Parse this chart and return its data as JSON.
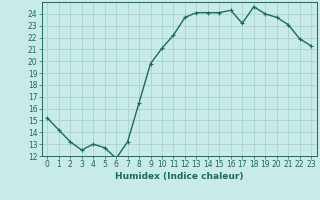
{
  "x": [
    0,
    1,
    2,
    3,
    4,
    5,
    6,
    7,
    8,
    9,
    10,
    11,
    12,
    13,
    14,
    15,
    16,
    17,
    18,
    19,
    20,
    21,
    22,
    23
  ],
  "y": [
    15.2,
    14.2,
    13.2,
    12.5,
    13.0,
    12.7,
    11.8,
    13.2,
    16.5,
    19.8,
    21.1,
    22.2,
    23.7,
    24.1,
    24.1,
    24.1,
    24.3,
    23.2,
    24.6,
    24.0,
    23.7,
    23.1,
    21.9,
    21.3
  ],
  "line_color": "#1a6b5a",
  "marker": "+",
  "marker_size": 3,
  "bg_color": "#c8ebe8",
  "grid_color": "#a8d4d0",
  "xlabel": "Humidex (Indice chaleur)",
  "xlim": [
    -0.5,
    23.5
  ],
  "ylim": [
    12,
    25
  ],
  "yticks": [
    12,
    13,
    14,
    15,
    16,
    17,
    18,
    19,
    20,
    21,
    22,
    23,
    24
  ],
  "xticks": [
    0,
    1,
    2,
    3,
    4,
    5,
    6,
    7,
    8,
    9,
    10,
    11,
    12,
    13,
    14,
    15,
    16,
    17,
    18,
    19,
    20,
    21,
    22,
    23
  ],
  "tick_fontsize": 5.5,
  "label_fontsize": 6.5,
  "line_width": 1.0
}
